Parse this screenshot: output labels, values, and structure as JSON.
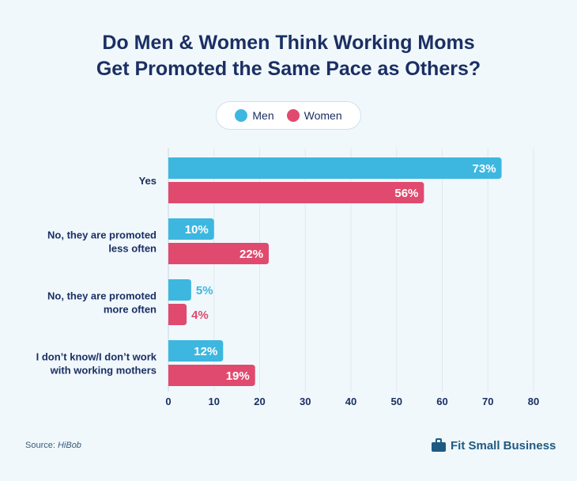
{
  "chart_data": {
    "type": "bar",
    "orientation": "horizontal",
    "title": "Do Men & Women Think Working Moms Get Promoted the Same Pace as Others?",
    "title_lines": [
      "Do Men & Women Think Working Moms",
      "Get Promoted the Same Pace as Others?"
    ],
    "categories": [
      [
        "Yes"
      ],
      [
        "No, they are promoted",
        "less often"
      ],
      [
        "No, they are promoted",
        "more often"
      ],
      [
        "I don’t know/I don’t work",
        "with working mothers"
      ]
    ],
    "series": [
      {
        "name": "Men",
        "color": "#3db7e0",
        "values": [
          73,
          10,
          5,
          12
        ]
      },
      {
        "name": "Women",
        "color": "#e04a6e",
        "values": [
          56,
          22,
          4,
          19
        ]
      }
    ],
    "xlim": [
      0,
      80
    ],
    "xticks": [
      0,
      10,
      20,
      30,
      40,
      50,
      60,
      70,
      80
    ],
    "value_suffix": "%",
    "grid": true,
    "legend_position": "top-center"
  },
  "source": {
    "label": "Source: ",
    "name": "HiBob"
  },
  "brand": "Fit Small Business"
}
